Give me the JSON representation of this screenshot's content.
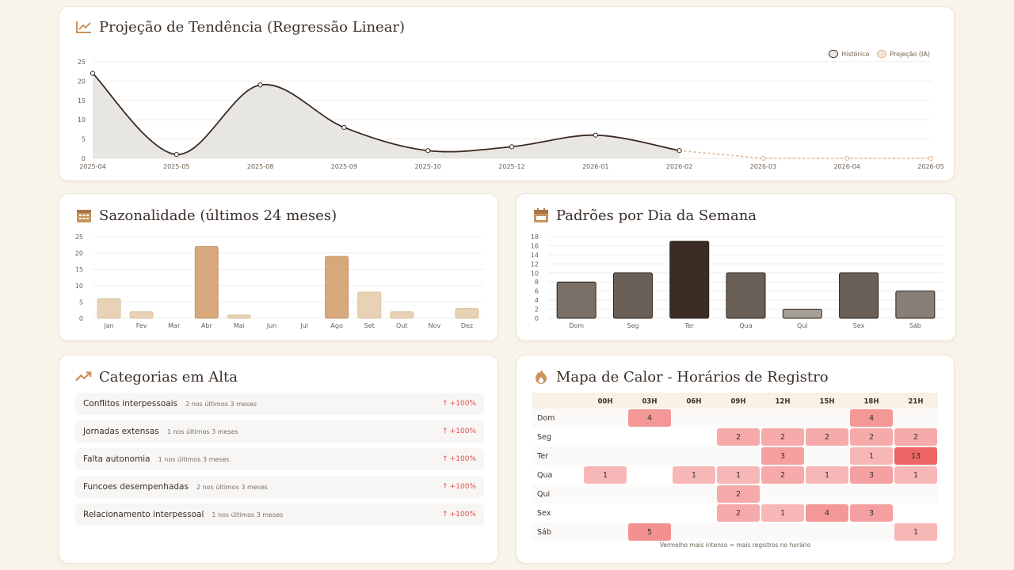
{
  "cards": {
    "trend": {
      "title": "Projeção de Tendência (Regressão Linear)",
      "icon": "line-chart-icon"
    },
    "season": {
      "title": "Sazonalidade (últimos 24 meses)",
      "icon": "calendar-icon"
    },
    "weekday": {
      "title": "Padrões por Dia da Semana",
      "icon": "calendar-icon"
    },
    "categories": {
      "title": "Categorias em Alta",
      "icon": "trending-up-icon"
    },
    "heatmap": {
      "title": "Mapa de Calor - Horários de Registro",
      "icon": "fire-icon",
      "note": "Vermelho mais intenso = mais registros no horário"
    }
  },
  "colors": {
    "line": "#3a2a22",
    "projection": "#e0b891",
    "area": "#e8e6e3",
    "bar_tan": "#d6a87c",
    "bar_light": "#e8d2b6",
    "heat_max": "#ee6565",
    "up": "#e34b4b"
  },
  "chart_data": [
    {
      "type": "line",
      "title": "Projeção de Tendência (Regressão Linear)",
      "x": [
        "2025-04",
        "2025-05",
        "2025-08",
        "2025-09",
        "2025-10",
        "2025-12",
        "2026-01",
        "2026-02",
        "2026-03",
        "2026-04",
        "2026-05"
      ],
      "series": [
        {
          "name": "Histórico",
          "values": [
            22,
            1,
            19,
            8,
            2,
            3,
            6,
            2,
            null,
            null,
            null
          ]
        },
        {
          "name": "Projeção (IA)",
          "values": [
            null,
            null,
            null,
            null,
            null,
            null,
            null,
            2,
            0,
            0,
            0
          ]
        }
      ],
      "ylim": [
        0,
        25
      ],
      "yticks": [
        0,
        5,
        10,
        15,
        20,
        25
      ],
      "legend": "top-right",
      "grid": true
    },
    {
      "type": "bar",
      "title": "Sazonalidade (últimos 24 meses)",
      "categories": [
        "Jan",
        "Fev",
        "Mar",
        "Abr",
        "Mai",
        "Jun",
        "Jul",
        "Ago",
        "Set",
        "Out",
        "Nov",
        "Dez"
      ],
      "values": [
        6,
        2,
        0,
        22,
        1,
        0,
        0,
        19,
        8,
        2,
        0,
        3
      ],
      "ylim": [
        0,
        25
      ],
      "yticks": [
        0,
        5,
        10,
        15,
        20,
        25
      ],
      "grid": true
    },
    {
      "type": "bar",
      "title": "Padrões por Dia da Semana",
      "categories": [
        "Dom",
        "Seg",
        "Ter",
        "Qua",
        "Qui",
        "Sex",
        "Sáb"
      ],
      "values": [
        8,
        10,
        17,
        10,
        2,
        10,
        6
      ],
      "ylim": [
        0,
        18
      ],
      "yticks": [
        0,
        2,
        4,
        6,
        8,
        10,
        12,
        14,
        16,
        18
      ],
      "grid": true
    },
    {
      "type": "heatmap",
      "title": "Mapa de Calor - Horários de Registro",
      "columns": [
        "00H",
        "03H",
        "06H",
        "09H",
        "12H",
        "15H",
        "18H",
        "21H"
      ],
      "rows": [
        "Dom",
        "Seg",
        "Ter",
        "Qua",
        "Qui",
        "Sex",
        "Sáb"
      ],
      "values": [
        [
          null,
          4,
          null,
          null,
          null,
          null,
          4,
          null
        ],
        [
          null,
          null,
          null,
          2,
          2,
          2,
          2,
          2
        ],
        [
          null,
          null,
          null,
          null,
          3,
          null,
          1,
          13
        ],
        [
          1,
          null,
          1,
          1,
          2,
          1,
          3,
          1
        ],
        [
          null,
          null,
          null,
          2,
          null,
          null,
          null,
          null
        ],
        [
          null,
          null,
          null,
          2,
          1,
          4,
          3,
          null
        ],
        [
          null,
          5,
          null,
          null,
          null,
          null,
          null,
          1
        ]
      ]
    }
  ],
  "categories_list": [
    {
      "name": "Conflitos interpessoais",
      "sub": "2 nos últimos 3 meses",
      "change": "+100%"
    },
    {
      "name": "Jornadas extensas",
      "sub": "1 nos últimos 3 meses",
      "change": "+100%"
    },
    {
      "name": "Falta autonomia",
      "sub": "1 nos últimos 3 meses",
      "change": "+100%"
    },
    {
      "name": "Funcoes desempenhadas",
      "sub": "2 nos últimos 3 meses",
      "change": "+100%"
    },
    {
      "name": "Relacionamento interpessoal",
      "sub": "1 nos últimos 3 meses",
      "change": "+100%"
    }
  ]
}
